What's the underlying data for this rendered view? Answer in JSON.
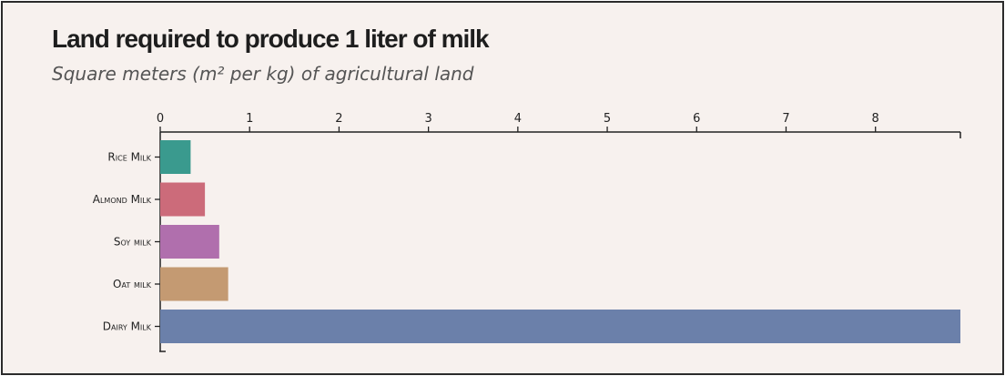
{
  "chart_data": {
    "type": "bar",
    "orientation": "horizontal",
    "title": "Land required to produce 1 liter of milk",
    "subtitle": "Square meters (m² per kg) of agricultural land",
    "categories": [
      "Rice Milk",
      "Almond Milk",
      "Soy milk",
      "Oat milk",
      "Dairy Milk"
    ],
    "values": [
      0.34,
      0.5,
      0.66,
      0.76,
      8.95
    ],
    "colors": [
      "#3a9a8e",
      "#cc6b7a",
      "#b06fad",
      "#c49a72",
      "#6b80aa"
    ],
    "xlim": [
      0,
      8.95
    ],
    "xticks": [
      "0",
      "1",
      "2",
      "3",
      "4",
      "5",
      "6",
      "7",
      "8"
    ],
    "grid": false,
    "legend": "none"
  }
}
